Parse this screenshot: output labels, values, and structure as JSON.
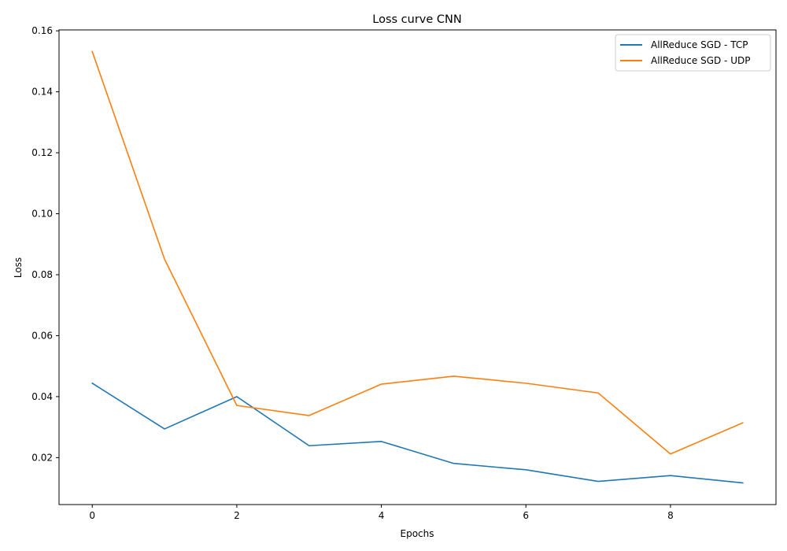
{
  "chart_data": {
    "type": "line",
    "title": "Loss curve CNN",
    "xlabel": "Epochs",
    "ylabel": "Loss",
    "x": [
      0,
      1,
      2,
      3,
      4,
      5,
      6,
      7,
      8,
      9
    ],
    "xlim": [
      -0.46,
      9.46
    ],
    "ylim": [
      0.0046,
      0.1603
    ],
    "xticks": [
      0,
      2,
      4,
      6,
      8
    ],
    "xtick_labels": [
      "0",
      "2",
      "4",
      "6",
      "8"
    ],
    "yticks": [
      0.02,
      0.04,
      0.06,
      0.08,
      0.1,
      0.12,
      0.14,
      0.16
    ],
    "ytick_labels": [
      "0.02",
      "0.04",
      "0.06",
      "0.08",
      "0.10",
      "0.12",
      "0.14",
      "0.16"
    ],
    "grid": false,
    "legend_position": "top-right",
    "series": [
      {
        "name": "AllReduce SGD - TCP",
        "color": "#1f77b4",
        "values": [
          0.0444,
          0.0294,
          0.04,
          0.0239,
          0.0253,
          0.0181,
          0.016,
          0.0122,
          0.0141,
          0.0117
        ]
      },
      {
        "name": "AllReduce SGD - UDP",
        "color": "#ff7f0e",
        "values": [
          0.1532,
          0.0851,
          0.0371,
          0.0338,
          0.0441,
          0.0467,
          0.0444,
          0.0412,
          0.0212,
          0.0314
        ]
      }
    ]
  }
}
